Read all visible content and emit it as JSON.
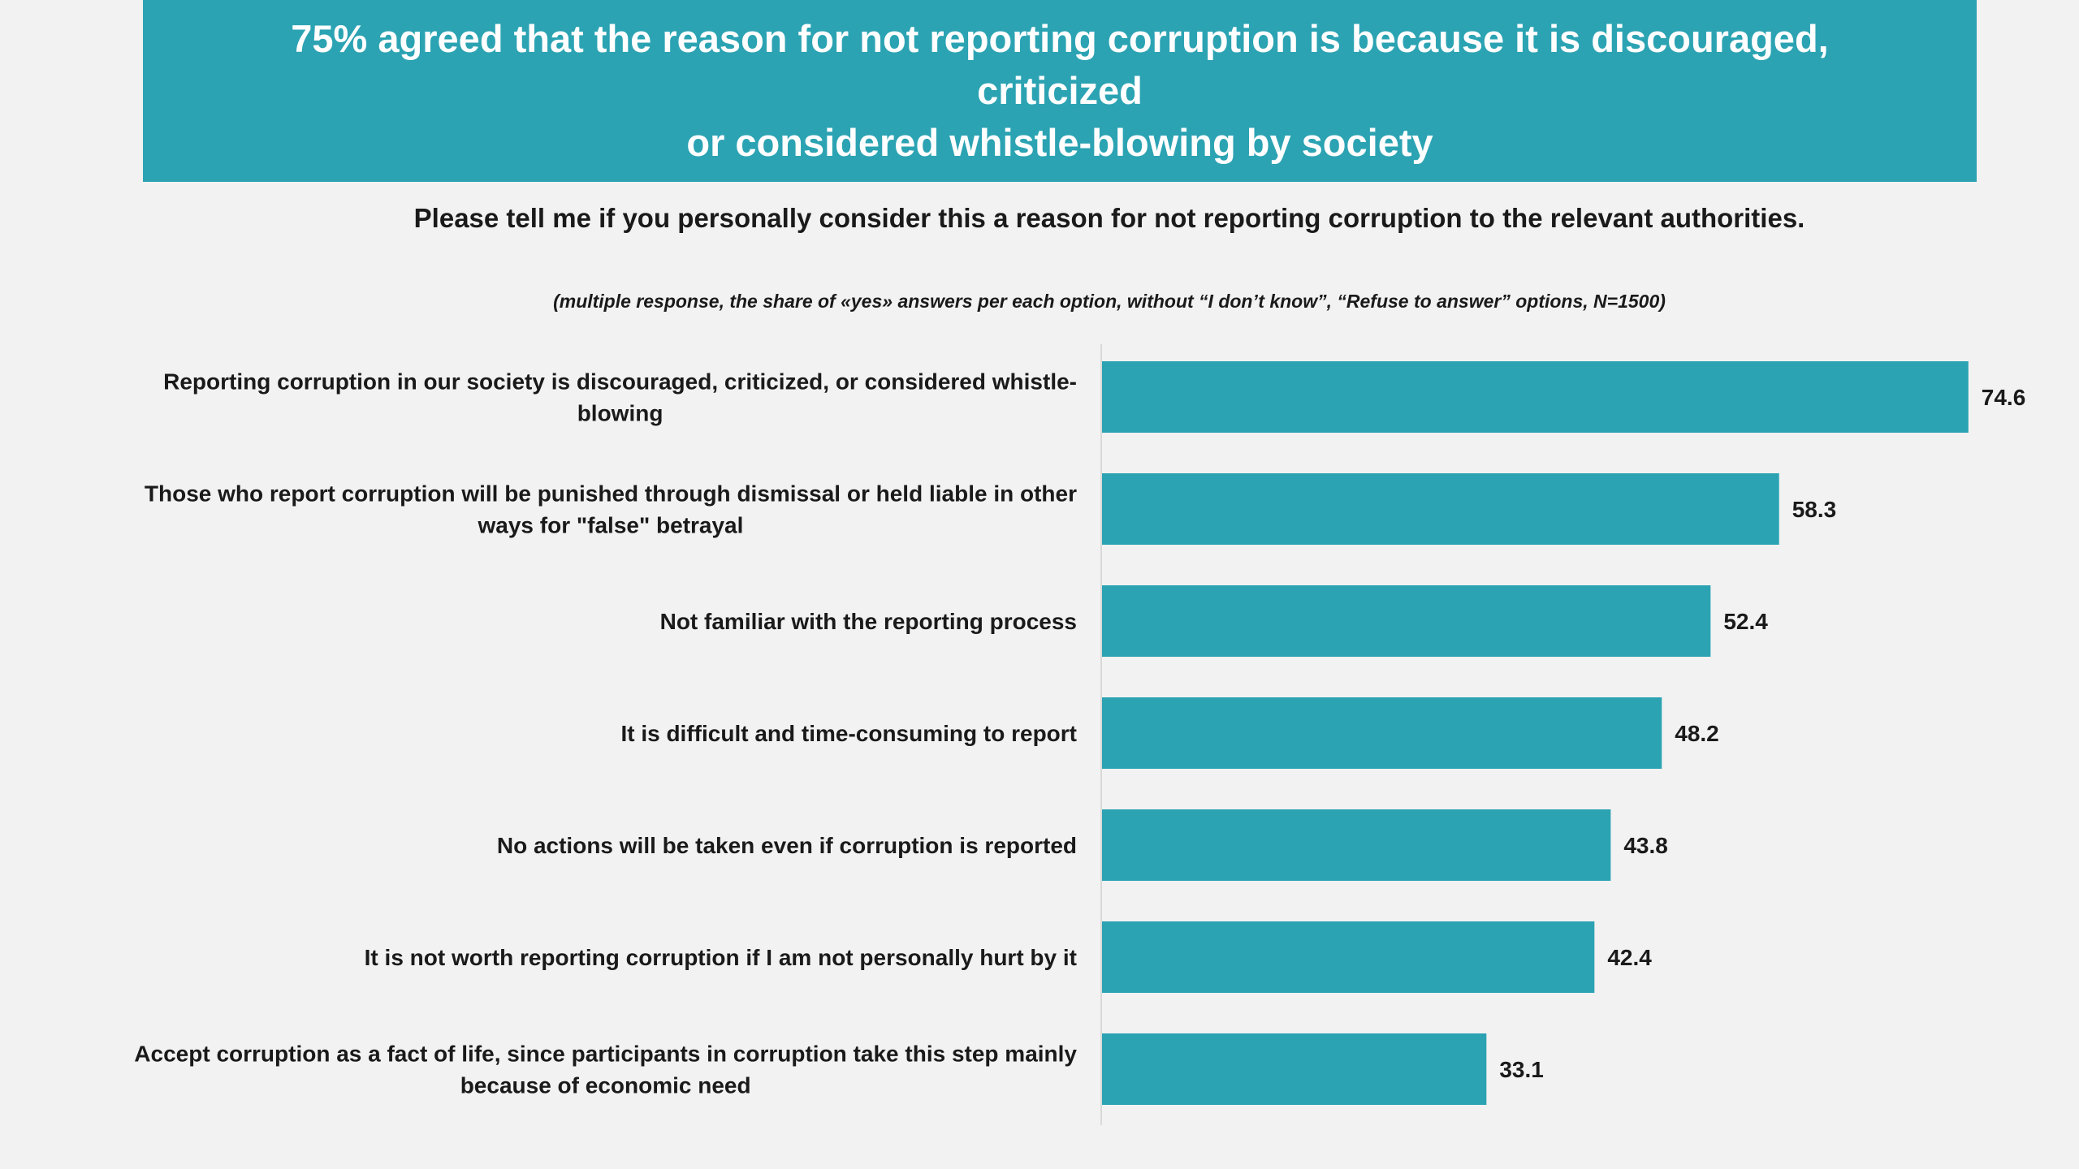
{
  "header": {
    "title_line1": "75% agreed that the reason for not reporting corruption is because it is discouraged, criticized",
    "title_line2": "or considered whistle-blowing by society"
  },
  "question": "Please tell me if you personally consider this a reason for not reporting corruption to the relevant authorities.",
  "note": "(multiple response,  the share of «yes» answers per each option, without “I don’t know”, “Refuse to answer” options, N=1500)",
  "colors": {
    "bar": "#2ba3b3",
    "banner": "#2ba3b3",
    "background": "#f2f2f2",
    "axis": "#d9d9d9"
  },
  "chart_data": {
    "type": "bar",
    "orientation": "horizontal",
    "title": "",
    "xlabel": "",
    "ylabel": "",
    "xlim": [
      0,
      80
    ],
    "grid": false,
    "legend": "none",
    "categories": [
      [
        "Reporting corruption in our society is discouraged, criticized, or considered whistle-",
        "blowing"
      ],
      [
        "Those who report corruption will be punished through dismissal or held liable in other",
        "ways for \"false\" betrayal"
      ],
      [
        "Not familiar with the reporting process"
      ],
      [
        "It is difficult and time-consuming to report"
      ],
      [
        "No actions will be taken even if corruption is reported"
      ],
      [
        "It is not worth reporting corruption if I am not personally hurt by it"
      ],
      [
        "Accept corruption as a fact of life, since participants in corruption take this step mainly",
        "because of economic need"
      ]
    ],
    "values": [
      74.6,
      58.3,
      52.4,
      48.2,
      43.8,
      42.4,
      33.1
    ],
    "value_labels": [
      "74.6",
      "58.3",
      "52.4",
      "48.2",
      "43.8",
      "42.4",
      "33.1"
    ]
  }
}
